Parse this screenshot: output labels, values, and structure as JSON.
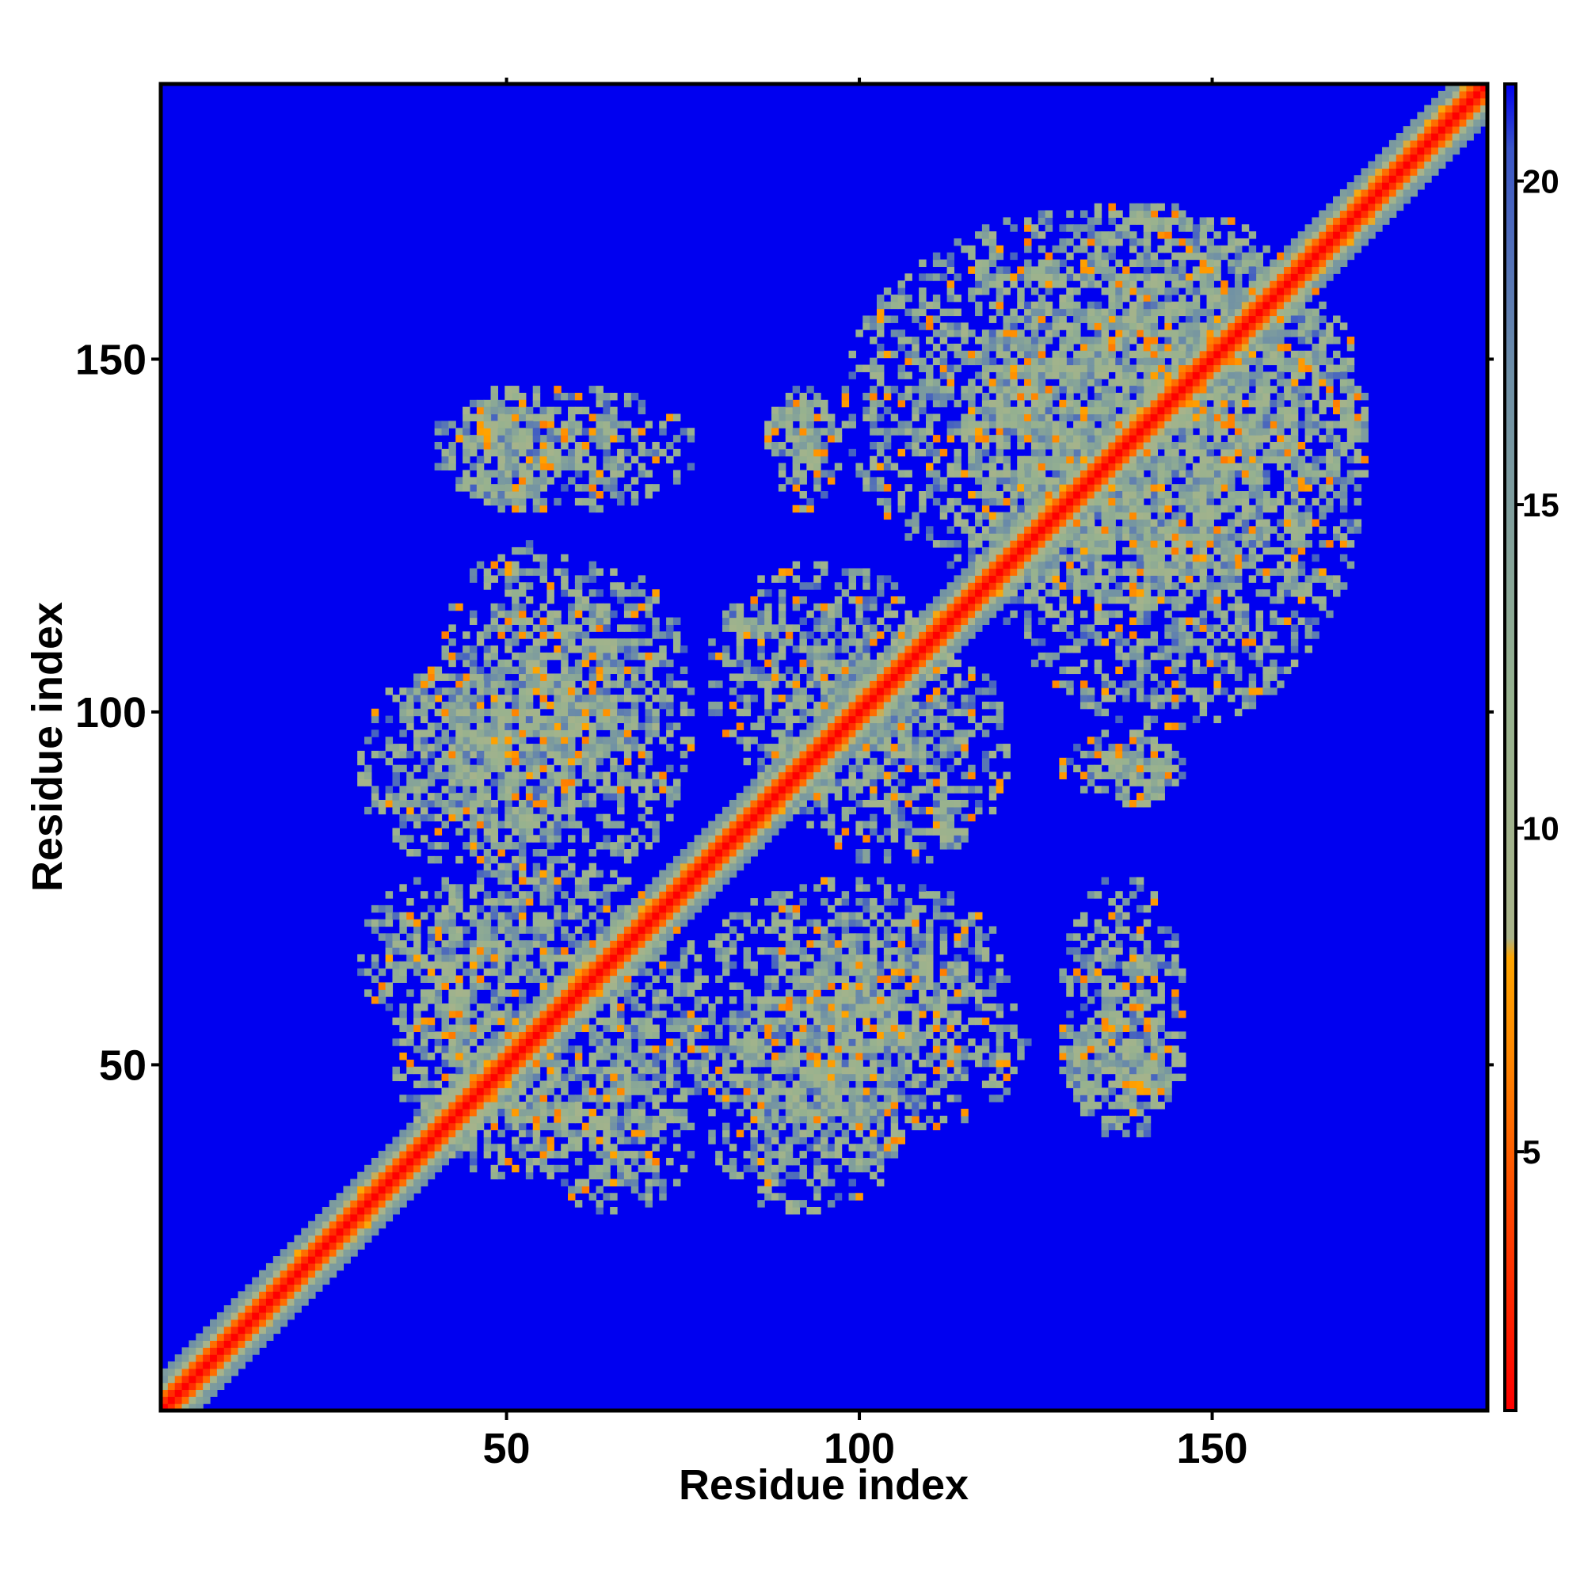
{
  "chart_data": {
    "type": "heatmap",
    "title": "",
    "xlabel": "Residue index",
    "ylabel": "Residue index",
    "xlim": [
      1,
      189
    ],
    "ylim": [
      1,
      189
    ],
    "x_ticks": [
      50,
      100,
      150
    ],
    "y_ticks": [
      50,
      100,
      150
    ],
    "grid": false,
    "background_color": "#0000f0",
    "colorbar": {
      "range": [
        1,
        21.5
      ],
      "ticks": [
        5,
        10,
        15,
        20
      ],
      "stops": [
        {
          "value": 1,
          "color": "#ff0000"
        },
        {
          "value": 4,
          "color": "#ff4400"
        },
        {
          "value": 6.5,
          "color": "#ff8800"
        },
        {
          "value": 8,
          "color": "#ffa500"
        },
        {
          "value": 8.3,
          "color": "#a9b38a"
        },
        {
          "value": 12,
          "color": "#97b28f"
        },
        {
          "value": 17,
          "color": "#6e8fa6"
        },
        {
          "value": 20.5,
          "color": "#3a55c8"
        },
        {
          "value": 21.5,
          "color": "#0000f0"
        }
      ]
    },
    "structure": {
      "diagonal_band_width": 5,
      "contact_clusters": [
        {
          "x": [
            40,
            60
          ],
          "y": [
            35,
            55
          ],
          "value": 12
        },
        {
          "x": [
            40,
            70
          ],
          "y": [
            60,
            78
          ],
          "value": 12
        },
        {
          "x": [
            40,
            65
          ],
          "y": [
            78,
            122
          ],
          "value": 12
        },
        {
          "x": [
            43,
            57
          ],
          "y": [
            130,
            145
          ],
          "value": 12
        },
        {
          "x": [
            55,
            75
          ],
          "y": [
            30,
            50
          ],
          "value": 12
        },
        {
          "x": [
            80,
            105
          ],
          "y": [
            30,
            55
          ],
          "value": 12
        },
        {
          "x": [
            80,
            120
          ],
          "y": [
            55,
            75
          ],
          "value": 12
        },
        {
          "x": [
            88,
            96
          ],
          "y": [
            130,
            145
          ],
          "value": 12
        },
        {
          "x": [
            80,
            110
          ],
          "y": [
            90,
            120
          ],
          "value": 12
        },
        {
          "x": [
            100,
            170
          ],
          "y": [
            118,
            170
          ],
          "value": 12
        },
        {
          "x": [
            130,
            145
          ],
          "y": [
            40,
            75
          ],
          "value": 12
        },
        {
          "x": [
            135,
            145
          ],
          "y": [
            88,
            95
          ],
          "value": 12
        }
      ]
    }
  }
}
